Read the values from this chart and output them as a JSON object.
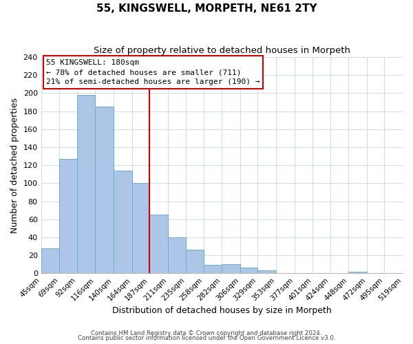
{
  "title": "55, KINGSWELL, MORPETH, NE61 2TY",
  "subtitle": "Size of property relative to detached houses in Morpeth",
  "xlabel": "Distribution of detached houses by size in Morpeth",
  "ylabel": "Number of detached properties",
  "bar_edges": [
    45,
    69,
    92,
    116,
    140,
    164,
    187,
    211,
    235,
    258,
    282,
    306,
    329,
    353,
    377,
    401,
    424,
    448,
    472,
    495,
    519
  ],
  "bar_heights": [
    28,
    127,
    198,
    185,
    114,
    100,
    65,
    40,
    26,
    9,
    10,
    6,
    3,
    0,
    0,
    0,
    0,
    2,
    0,
    0,
    0
  ],
  "bar_labels": [
    "45sqm",
    "69sqm",
    "92sqm",
    "116sqm",
    "140sqm",
    "164sqm",
    "187sqm",
    "211sqm",
    "235sqm",
    "258sqm",
    "282sqm",
    "306sqm",
    "329sqm",
    "353sqm",
    "377sqm",
    "401sqm",
    "424sqm",
    "448sqm",
    "472sqm",
    "495sqm",
    "519sqm"
  ],
  "bar_color": "#adc6e8",
  "bar_edgecolor": "#6aaad4",
  "vline_x": 187,
  "vline_color": "#cc0000",
  "annotation_title": "55 KINGSWELL: 180sqm",
  "annotation_line1": "← 78% of detached houses are smaller (711)",
  "annotation_line2": "21% of semi-detached houses are larger (190) →",
  "annotation_box_edgecolor": "#cc0000",
  "ylim": [
    0,
    240
  ],
  "yticks": [
    0,
    20,
    40,
    60,
    80,
    100,
    120,
    140,
    160,
    180,
    200,
    220,
    240
  ],
  "footer1": "Contains HM Land Registry data © Crown copyright and database right 2024.",
  "footer2": "Contains public sector information licensed under the Open Government Licence v3.0.",
  "background_color": "#ffffff",
  "grid_color": "#d0dcea"
}
